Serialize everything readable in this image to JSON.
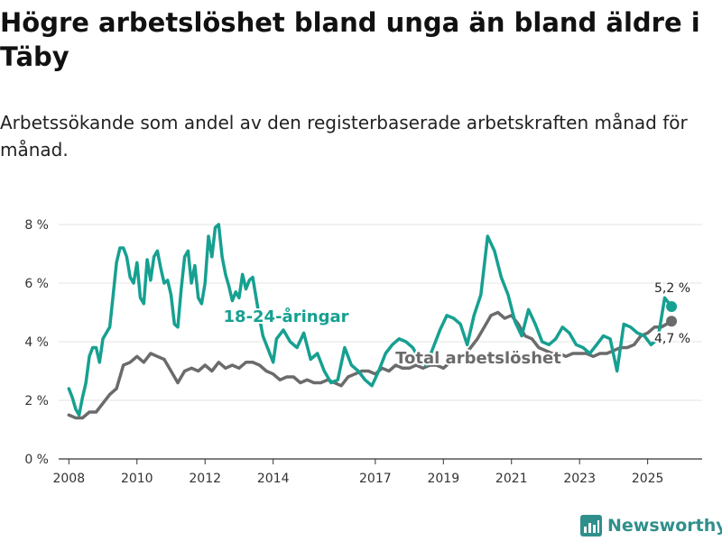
{
  "title": "Högre arbetslöshet bland unga än bland äldre i Täby",
  "subtitle": "Arbetssökande som andel av den registerbaserade arbetskraften månad för månad.",
  "brand": {
    "name": "Newsworthy",
    "color": "#2f8f8b",
    "icon": "bar-chart-icon"
  },
  "colors": {
    "young": "#16a091",
    "total": "#6b6b6b",
    "grid": "#e3e3e3",
    "axis": "#333333"
  },
  "chart_data": {
    "type": "line",
    "title": "Högre arbetslöshet bland unga än bland äldre i Täby",
    "xlabel": "",
    "ylabel": "",
    "xlim": [
      2007.7,
      2026.6
    ],
    "ylim": [
      0,
      8
    ],
    "y_ticks": [
      0,
      2,
      4,
      6,
      8
    ],
    "y_tick_labels": [
      "0 %",
      "2 %",
      "4 %",
      "6 %",
      "8 %"
    ],
    "x_ticks": [
      2008,
      2010,
      2012,
      2014,
      2017,
      2019,
      2021,
      2023,
      2025
    ],
    "x_tick_labels": [
      "2008",
      "2010",
      "2012",
      "2014",
      "2017",
      "2019",
      "2021",
      "2023",
      "2025"
    ],
    "grid": "horizontal",
    "series": [
      {
        "name": "18-24-åringar",
        "color": "#16a091",
        "label": "18-24-åringar",
        "end_label": "5,2 %",
        "end_value": 5.2,
        "x": [
          2008.0,
          2008.1,
          2008.2,
          2008.3,
          2008.4,
          2008.5,
          2008.6,
          2008.7,
          2008.8,
          2008.9,
          2009.0,
          2009.1,
          2009.2,
          2009.3,
          2009.4,
          2009.5,
          2009.6,
          2009.7,
          2009.8,
          2009.9,
          2010.0,
          2010.1,
          2010.2,
          2010.3,
          2010.4,
          2010.5,
          2010.6,
          2010.7,
          2010.8,
          2010.9,
          2011.0,
          2011.1,
          2011.2,
          2011.3,
          2011.4,
          2011.5,
          2011.6,
          2011.7,
          2011.8,
          2011.9,
          2012.0,
          2012.1,
          2012.2,
          2012.3,
          2012.4,
          2012.5,
          2012.6,
          2012.7,
          2012.8,
          2012.9,
          2013.0,
          2013.1,
          2013.2,
          2013.3,
          2013.4,
          2013.5,
          2013.6,
          2013.7,
          2013.8,
          2013.9,
          2014.0,
          2014.1,
          2014.3,
          2014.5,
          2014.7,
          2014.9,
          2015.1,
          2015.3,
          2015.5,
          2015.7,
          2015.9,
          2016.1,
          2016.3,
          2016.5,
          2016.7,
          2016.9,
          2017.1,
          2017.3,
          2017.5,
          2017.7,
          2017.9,
          2018.1,
          2018.3,
          2018.5,
          2018.7,
          2018.9,
          2019.1,
          2019.3,
          2019.5,
          2019.7,
          2019.9,
          2020.1,
          2020.3,
          2020.5,
          2020.7,
          2020.9,
          2021.1,
          2021.3,
          2021.5,
          2021.7,
          2021.9,
          2022.1,
          2022.3,
          2022.5,
          2022.7,
          2022.9,
          2023.1,
          2023.3,
          2023.5,
          2023.7,
          2023.9,
          2024.1,
          2024.3,
          2024.5,
          2024.7,
          2024.9,
          2025.1,
          2025.3,
          2025.5,
          2025.7
        ],
        "y": [
          2.4,
          2.1,
          1.7,
          1.5,
          2.1,
          2.6,
          3.5,
          3.8,
          3.8,
          3.3,
          4.1,
          4.3,
          4.5,
          5.6,
          6.7,
          7.2,
          7.2,
          6.9,
          6.2,
          6.0,
          6.7,
          5.5,
          5.3,
          6.8,
          6.1,
          6.9,
          7.1,
          6.5,
          6.0,
          6.1,
          5.6,
          4.6,
          4.5,
          5.8,
          6.9,
          7.1,
          6.0,
          6.6,
          5.5,
          5.3,
          6.0,
          7.6,
          6.9,
          7.9,
          8.0,
          6.9,
          6.3,
          5.9,
          5.4,
          5.7,
          5.5,
          6.3,
          5.8,
          6.1,
          6.2,
          5.5,
          4.8,
          4.2,
          3.9,
          3.6,
          3.3,
          4.1,
          4.4,
          4.0,
          3.8,
          4.3,
          3.4,
          3.6,
          3.0,
          2.6,
          2.7,
          3.8,
          3.2,
          3.0,
          2.7,
          2.5,
          3.0,
          3.6,
          3.9,
          4.1,
          4.0,
          3.8,
          3.4,
          3.2,
          3.8,
          4.4,
          4.9,
          4.8,
          4.6,
          3.9,
          4.9,
          5.6,
          7.6,
          7.1,
          6.2,
          5.6,
          4.7,
          4.2,
          5.1,
          4.6,
          4.0,
          3.9,
          4.1,
          4.5,
          4.3,
          3.9,
          3.8,
          3.6,
          3.9,
          4.2,
          4.1,
          3.0,
          4.6,
          4.5,
          4.3,
          4.2,
          3.9,
          4.1,
          5.5,
          5.2
        ]
      },
      {
        "name": "Total arbetslöshet",
        "color": "#6b6b6b",
        "label": "Total arbetslöshet",
        "end_label": "4,7 %",
        "end_value": 4.7,
        "x": [
          2008.0,
          2008.2,
          2008.4,
          2008.6,
          2008.8,
          2009.0,
          2009.2,
          2009.4,
          2009.6,
          2009.8,
          2010.0,
          2010.2,
          2010.4,
          2010.6,
          2010.8,
          2011.0,
          2011.2,
          2011.4,
          2011.6,
          2011.8,
          2012.0,
          2012.2,
          2012.4,
          2012.6,
          2012.8,
          2013.0,
          2013.2,
          2013.4,
          2013.6,
          2013.8,
          2014.0,
          2014.2,
          2014.4,
          2014.6,
          2014.8,
          2015.0,
          2015.2,
          2015.4,
          2015.6,
          2015.8,
          2016.0,
          2016.2,
          2016.4,
          2016.6,
          2016.8,
          2017.0,
          2017.2,
          2017.4,
          2017.6,
          2017.8,
          2018.0,
          2018.2,
          2018.4,
          2018.6,
          2018.8,
          2019.0,
          2019.2,
          2019.4,
          2019.6,
          2019.8,
          2020.0,
          2020.2,
          2020.4,
          2020.6,
          2020.8,
          2021.0,
          2021.2,
          2021.4,
          2021.6,
          2021.8,
          2022.0,
          2022.2,
          2022.4,
          2022.6,
          2022.8,
          2023.0,
          2023.2,
          2023.4,
          2023.6,
          2023.8,
          2024.0,
          2024.2,
          2024.4,
          2024.6,
          2024.8,
          2025.0,
          2025.2,
          2025.4,
          2025.7
        ],
        "y": [
          1.5,
          1.4,
          1.4,
          1.6,
          1.6,
          1.9,
          2.2,
          2.4,
          3.2,
          3.3,
          3.5,
          3.3,
          3.6,
          3.5,
          3.4,
          3.0,
          2.6,
          3.0,
          3.1,
          3.0,
          3.2,
          3.0,
          3.3,
          3.1,
          3.2,
          3.1,
          3.3,
          3.3,
          3.2,
          3.0,
          2.9,
          2.7,
          2.8,
          2.8,
          2.6,
          2.7,
          2.6,
          2.6,
          2.7,
          2.6,
          2.5,
          2.8,
          2.9,
          3.0,
          3.0,
          2.9,
          3.1,
          3.0,
          3.2,
          3.1,
          3.1,
          3.2,
          3.1,
          3.2,
          3.2,
          3.1,
          3.3,
          3.4,
          3.5,
          3.8,
          4.1,
          4.5,
          4.9,
          5.0,
          4.8,
          4.9,
          4.6,
          4.2,
          4.1,
          3.8,
          3.7,
          3.6,
          3.6,
          3.5,
          3.6,
          3.6,
          3.6,
          3.5,
          3.6,
          3.6,
          3.7,
          3.8,
          3.8,
          3.9,
          4.2,
          4.3,
          4.5,
          4.5,
          4.7
        ]
      }
    ]
  }
}
